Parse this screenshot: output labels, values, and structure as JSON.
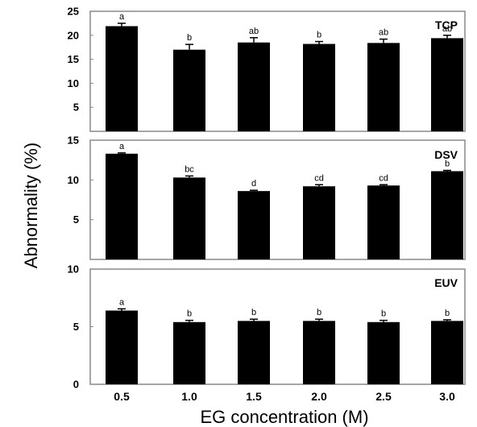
{
  "chart_data": {
    "type": "bar",
    "xlabel": "EG concentration (M)",
    "ylabel": "Abnormality (%)",
    "categories": [
      "0.5",
      "1.0",
      "1.5",
      "2.0",
      "2.5",
      "3.0"
    ],
    "panels": [
      {
        "title": "TCP",
        "ylim": [
          0,
          25
        ],
        "yticks": [
          "5",
          "10",
          "15",
          "20",
          "25"
        ],
        "values": [
          21.9,
          17.0,
          18.5,
          18.2,
          18.4,
          19.4
        ],
        "errors": [
          0.6,
          1.1,
          1.0,
          0.5,
          0.8,
          0.6
        ],
        "letters": [
          "a",
          "b",
          "ab",
          "b",
          "ab",
          "ab"
        ]
      },
      {
        "title": "DSV",
        "ylim": [
          0,
          15
        ],
        "yticks": [
          "5",
          "10",
          "15"
        ],
        "values": [
          13.3,
          10.3,
          8.6,
          9.2,
          9.3,
          11.1
        ],
        "errors": [
          0.1,
          0.2,
          0.1,
          0.2,
          0.1,
          0.1
        ],
        "letters": [
          "a",
          "bc",
          "d",
          "cd",
          "cd",
          "b"
        ]
      },
      {
        "title": "EUV",
        "ylim": [
          0,
          10
        ],
        "yticks": [
          "0",
          "5",
          "10"
        ],
        "values": [
          6.4,
          5.4,
          5.5,
          5.5,
          5.4,
          5.5
        ],
        "errors": [
          0.15,
          0.15,
          0.15,
          0.15,
          0.15,
          0.1
        ],
        "letters": [
          "a",
          "b",
          "b",
          "b",
          "b",
          "b"
        ]
      }
    ]
  }
}
